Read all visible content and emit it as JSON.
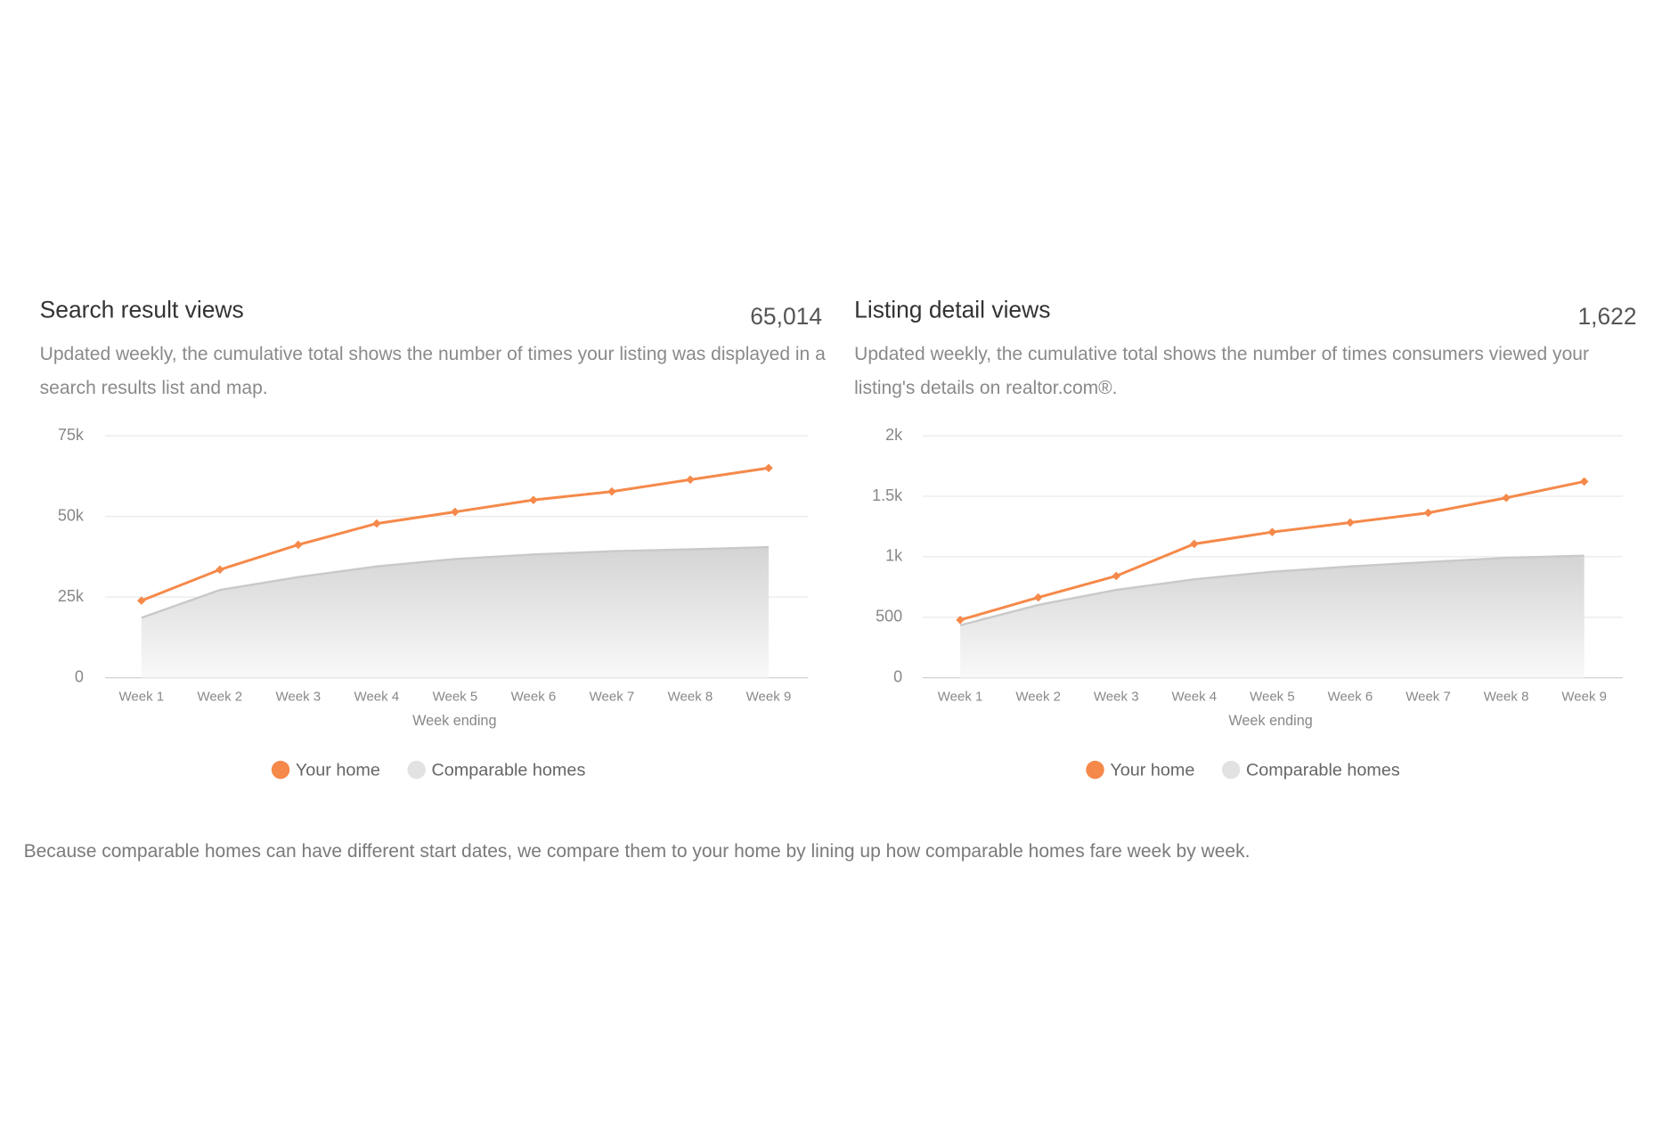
{
  "chart_data": [
    {
      "type": "line-area",
      "title": "Search result views",
      "total": "65,014",
      "description": "Updated weekly, the cumulative total shows the number of times your listing was displayed in a search results list and map.",
      "x_label": "Week ending",
      "categories": [
        "Week 1",
        "Week 2",
        "Week 3",
        "Week 4",
        "Week 5",
        "Week 6",
        "Week 7",
        "Week 8",
        "Week 9"
      ],
      "series": [
        {
          "name": "Your home",
          "color": "#f5894a",
          "kind": "line",
          "values": [
            23900,
            33500,
            41200,
            47800,
            51400,
            55100,
            57700,
            61400,
            65014
          ]
        },
        {
          "name": "Comparable homes",
          "color": "#e2e2e2",
          "kind": "area",
          "values": [
            18600,
            27200,
            31200,
            34500,
            36800,
            38200,
            39200,
            39800,
            40500
          ]
        }
      ],
      "ylim": [
        0,
        75000
      ],
      "yticks": [
        0,
        {
          "value": 25000,
          "label": "25k"
        },
        {
          "value": 50000,
          "label": "50k"
        },
        {
          "value": 75000,
          "label": "75k"
        }
      ],
      "grid": true
    },
    {
      "type": "line-area",
      "title": "Listing detail views",
      "total": "1,622",
      "description": "Updated weekly, the cumulative total shows the number of times consumers viewed your listing's details on realtor.com®.",
      "x_label": "Week ending",
      "categories": [
        "Week 1",
        "Week 2",
        "Week 3",
        "Week 4",
        "Week 5",
        "Week 6",
        "Week 7",
        "Week 8",
        "Week 9"
      ],
      "series": [
        {
          "name": "Your home",
          "color": "#f5894a",
          "kind": "line",
          "values": [
            478,
            664,
            841,
            1106,
            1204,
            1283,
            1363,
            1487,
            1622
          ]
        },
        {
          "name": "Comparable homes",
          "color": "#e2e2e2",
          "kind": "area",
          "values": [
            434,
            602,
            726,
            814,
            876,
            920,
            956,
            991,
            1009
          ]
        }
      ],
      "ylim": [
        0,
        2000
      ],
      "yticks": [
        0,
        500,
        {
          "value": 1000,
          "label": "1k"
        },
        {
          "value": 1500,
          "label": "1.5k"
        },
        {
          "value": 2000,
          "label": "2k"
        }
      ],
      "grid": true
    }
  ],
  "footnote": "Because comparable homes can have different start dates, we compare them to your home by lining up how comparable homes fare week by week."
}
